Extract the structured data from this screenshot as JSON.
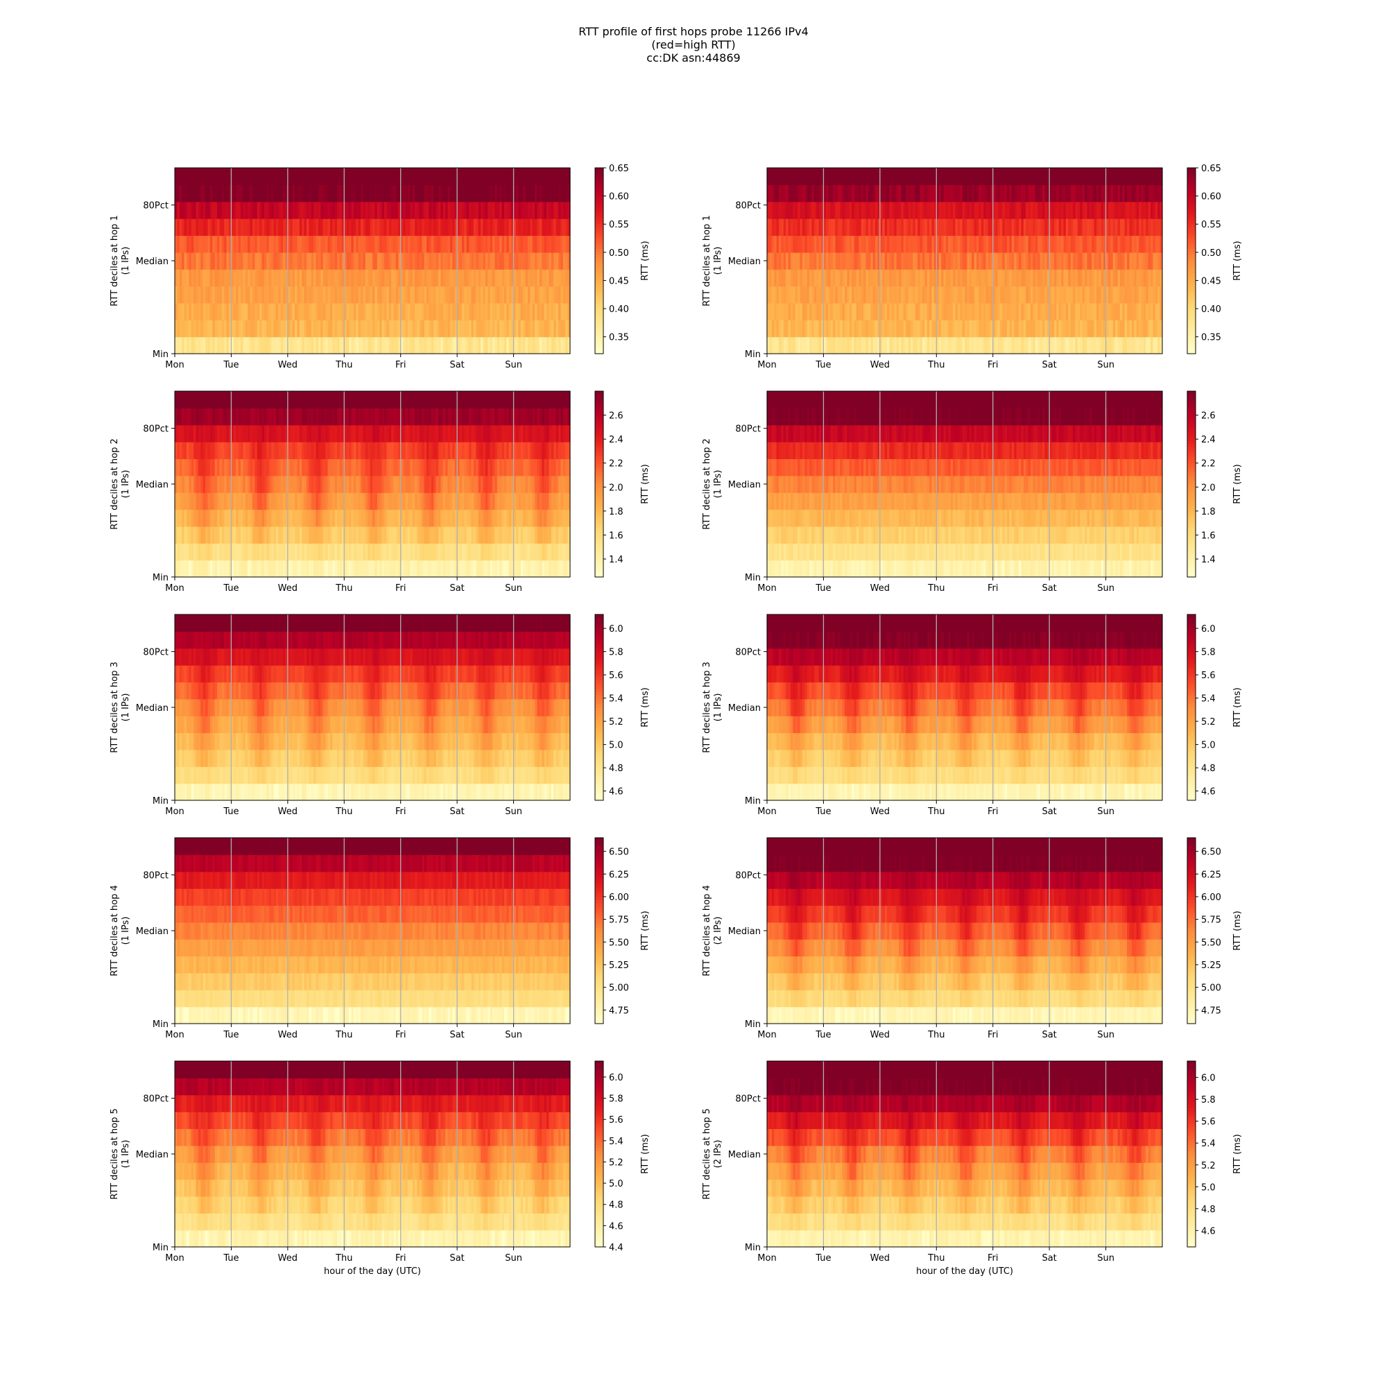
{
  "figure": {
    "title_lines": [
      "RTT profile of first hops probe 11266 IPv4",
      "(red=high RTT)",
      "cc:DK asn:44869"
    ]
  },
  "chart_data": [
    {
      "type": "heatmap",
      "hop": 1,
      "ylabel": [
        "RTT deciles at hop 1",
        "(1 IPs)"
      ],
      "xlabel": "",
      "x_ticks": [
        "Mon",
        "Tue",
        "Wed",
        "Thu",
        "Fri",
        "Sat",
        "Sun"
      ],
      "y_ticks": [
        "Min",
        "Median",
        "80Pct"
      ],
      "colorbar_label": "RTT (ms)",
      "colorbar_ticks": [
        0.35,
        0.4,
        0.45,
        0.5,
        0.55,
        0.6,
        0.65
      ],
      "colorbar_tick_labels": [
        "0.35",
        "0.40",
        "0.45",
        "0.50",
        "0.55",
        "0.60",
        "0.65"
      ],
      "colorbar_range": [
        0.32,
        0.65
      ],
      "deciles_approx": [
        0.38,
        0.44,
        0.45,
        0.46,
        0.47,
        0.5,
        0.52,
        0.56,
        0.6,
        0.65,
        0.68
      ],
      "variability": 0.1,
      "pattern": "flat"
    },
    {
      "type": "heatmap",
      "hop": 1,
      "ylabel": [
        "RTT deciles at hop 1",
        "(1 IPs)"
      ],
      "xlabel": "",
      "x_ticks": [
        "Mon",
        "Tue",
        "Wed",
        "Thu",
        "Fri",
        "Sat",
        "Sun"
      ],
      "y_ticks": [
        "Min",
        "Median",
        "80Pct"
      ],
      "colorbar_label": "RTT (ms)",
      "colorbar_ticks": [
        0.35,
        0.4,
        0.45,
        0.5,
        0.55,
        0.6,
        0.65
      ],
      "colorbar_tick_labels": [
        "0.35",
        "0.40",
        "0.45",
        "0.50",
        "0.55",
        "0.60",
        "0.65"
      ],
      "colorbar_range": [
        0.32,
        0.65
      ],
      "deciles_approx": [
        0.38,
        0.44,
        0.45,
        0.46,
        0.47,
        0.5,
        0.52,
        0.55,
        0.58,
        0.63,
        0.68
      ],
      "variability": 0.1,
      "pattern": "flat"
    },
    {
      "type": "heatmap",
      "hop": 2,
      "ylabel": [
        "RTT deciles at hop 2",
        "(1 IPs)"
      ],
      "xlabel": "",
      "x_ticks": [
        "Mon",
        "Tue",
        "Wed",
        "Thu",
        "Fri",
        "Sat",
        "Sun"
      ],
      "y_ticks": [
        "Min",
        "Median",
        "80Pct"
      ],
      "colorbar_label": "RTT (ms)",
      "colorbar_ticks": [
        1.4,
        1.6,
        1.8,
        2.0,
        2.2,
        2.4,
        2.6
      ],
      "colorbar_tick_labels": [
        "1.4",
        "1.6",
        "1.8",
        "2.0",
        "2.2",
        "2.4",
        "2.6"
      ],
      "colorbar_range": [
        1.25,
        2.8
      ],
      "deciles_approx": [
        1.4,
        1.55,
        1.68,
        1.8,
        1.92,
        2.02,
        2.12,
        2.25,
        2.45,
        2.7,
        2.9
      ],
      "variability": 0.07,
      "pattern": "diurnal"
    },
    {
      "type": "heatmap",
      "hop": 2,
      "ylabel": [
        "RTT deciles at hop 2",
        "(1 IPs)"
      ],
      "xlabel": "",
      "x_ticks": [
        "Mon",
        "Tue",
        "Wed",
        "Thu",
        "Fri",
        "Sat",
        "Sun"
      ],
      "y_ticks": [
        "Min",
        "Median",
        "80Pct"
      ],
      "colorbar_label": "RTT (ms)",
      "colorbar_ticks": [
        1.4,
        1.6,
        1.8,
        2.0,
        2.2,
        2.4,
        2.6
      ],
      "colorbar_tick_labels": [
        "1.4",
        "1.6",
        "1.8",
        "2.0",
        "2.2",
        "2.4",
        "2.6"
      ],
      "colorbar_range": [
        1.25,
        2.8
      ],
      "deciles_approx": [
        1.4,
        1.55,
        1.68,
        1.8,
        1.92,
        2.05,
        2.18,
        2.35,
        2.55,
        2.8,
        2.9
      ],
      "variability": 0.07,
      "pattern": "flat"
    },
    {
      "type": "heatmap",
      "hop": 3,
      "ylabel": [
        "RTT deciles at hop 3",
        "(1 IPs)"
      ],
      "xlabel": "",
      "x_ticks": [
        "Mon",
        "Tue",
        "Wed",
        "Thu",
        "Fri",
        "Sat",
        "Sun"
      ],
      "y_ticks": [
        "Min",
        "Median",
        "80Pct"
      ],
      "colorbar_label": "RTT (ms)",
      "colorbar_ticks": [
        4.6,
        4.8,
        5.0,
        5.2,
        5.4,
        5.6,
        5.8,
        6.0
      ],
      "colorbar_tick_labels": [
        "4.6",
        "4.8",
        "5.0",
        "5.2",
        "5.4",
        "5.6",
        "5.8",
        "6.0"
      ],
      "colorbar_range": [
        4.52,
        6.12
      ],
      "deciles_approx": [
        4.65,
        4.85,
        4.95,
        5.05,
        5.15,
        5.25,
        5.4,
        5.55,
        5.75,
        5.95,
        6.15
      ],
      "variability": 0.06,
      "pattern": "diurnal"
    },
    {
      "type": "heatmap",
      "hop": 3,
      "ylabel": [
        "RTT deciles at hop 3",
        "(1 IPs)"
      ],
      "xlabel": "",
      "x_ticks": [
        "Mon",
        "Tue",
        "Wed",
        "Thu",
        "Fri",
        "Sat",
        "Sun"
      ],
      "y_ticks": [
        "Min",
        "Median",
        "80Pct"
      ],
      "colorbar_label": "RTT (ms)",
      "colorbar_ticks": [
        4.6,
        4.8,
        5.0,
        5.2,
        5.4,
        5.6,
        5.8,
        6.0
      ],
      "colorbar_tick_labels": [
        "4.6",
        "4.8",
        "5.0",
        "5.2",
        "5.4",
        "5.6",
        "5.8",
        "6.0"
      ],
      "colorbar_range": [
        4.52,
        6.12
      ],
      "deciles_approx": [
        4.65,
        4.85,
        4.95,
        5.05,
        5.2,
        5.35,
        5.5,
        5.7,
        5.9,
        6.1,
        6.2
      ],
      "variability": 0.06,
      "pattern": "diurnal"
    },
    {
      "type": "heatmap",
      "hop": 4,
      "ylabel": [
        "RTT deciles at hop 4",
        "(1 IPs)"
      ],
      "xlabel": "",
      "x_ticks": [
        "Mon",
        "Tue",
        "Wed",
        "Thu",
        "Fri",
        "Sat",
        "Sun"
      ],
      "y_ticks": [
        "Min",
        "Median",
        "80Pct"
      ],
      "colorbar_label": "RTT (ms)",
      "colorbar_ticks": [
        4.75,
        5.0,
        5.25,
        5.5,
        5.75,
        6.0,
        6.25,
        6.5
      ],
      "colorbar_tick_labels": [
        "4.75",
        "5.00",
        "5.25",
        "5.50",
        "5.75",
        "6.00",
        "6.25",
        "6.50"
      ],
      "colorbar_range": [
        4.6,
        6.65
      ],
      "deciles_approx": [
        4.75,
        5.05,
        5.2,
        5.35,
        5.5,
        5.65,
        5.8,
        5.95,
        6.15,
        6.4,
        6.7
      ],
      "variability": 0.06,
      "pattern": "flat"
    },
    {
      "type": "heatmap",
      "hop": 4,
      "ylabel": [
        "RTT deciles at hop 4",
        "(2 IPs)"
      ],
      "xlabel": "",
      "x_ticks": [
        "Mon",
        "Tue",
        "Wed",
        "Thu",
        "Fri",
        "Sat",
        "Sun"
      ],
      "y_ticks": [
        "Min",
        "Median",
        "80Pct"
      ],
      "colorbar_label": "RTT (ms)",
      "colorbar_ticks": [
        4.75,
        5.0,
        5.25,
        5.5,
        5.75,
        6.0,
        6.25,
        6.5
      ],
      "colorbar_tick_labels": [
        "4.75",
        "5.00",
        "5.25",
        "5.50",
        "5.75",
        "6.00",
        "6.25",
        "6.50"
      ],
      "colorbar_range": [
        4.6,
        6.65
      ],
      "deciles_approx": [
        4.75,
        5.05,
        5.2,
        5.35,
        5.55,
        5.75,
        5.95,
        6.15,
        6.4,
        6.65,
        6.75
      ],
      "variability": 0.06,
      "pattern": "diurnal"
    },
    {
      "type": "heatmap",
      "hop": 5,
      "ylabel": [
        "RTT deciles at hop 5",
        "(1 IPs)"
      ],
      "xlabel": "hour of the day (UTC)",
      "x_ticks": [
        "Mon",
        "Tue",
        "Wed",
        "Thu",
        "Fri",
        "Sat",
        "Sun"
      ],
      "y_ticks": [
        "Min",
        "Median",
        "80Pct"
      ],
      "colorbar_label": "RTT (ms)",
      "colorbar_ticks": [
        4.4,
        4.6,
        4.8,
        5.0,
        5.2,
        5.4,
        5.6,
        5.8,
        6.0
      ],
      "colorbar_tick_labels": [
        "4.4",
        "4.6",
        "4.8",
        "5.0",
        "5.2",
        "5.4",
        "5.6",
        "5.8",
        "6.0"
      ],
      "colorbar_range": [
        4.4,
        6.15
      ],
      "deciles_approx": [
        4.55,
        4.72,
        4.82,
        4.92,
        5.02,
        5.15,
        5.32,
        5.5,
        5.7,
        5.95,
        6.2
      ],
      "variability": 0.07,
      "pattern": "diurnal"
    },
    {
      "type": "heatmap",
      "hop": 5,
      "ylabel": [
        "RTT deciles at hop 5",
        "(2 IPs)"
      ],
      "xlabel": "hour of the day (UTC)",
      "x_ticks": [
        "Mon",
        "Tue",
        "Wed",
        "Thu",
        "Fri",
        "Sat",
        "Sun"
      ],
      "y_ticks": [
        "Min",
        "Median",
        "80Pct"
      ],
      "colorbar_label": "RTT (ms)",
      "colorbar_ticks": [
        4.6,
        4.8,
        5.0,
        5.2,
        5.4,
        5.6,
        5.8,
        6.0
      ],
      "colorbar_tick_labels": [
        "4.6",
        "4.8",
        "5.0",
        "5.2",
        "5.4",
        "5.6",
        "5.8",
        "6.0"
      ],
      "colorbar_range": [
        4.45,
        6.15
      ],
      "deciles_approx": [
        4.6,
        4.78,
        4.9,
        5.02,
        5.15,
        5.3,
        5.5,
        5.72,
        5.95,
        6.15,
        6.25
      ],
      "variability": 0.07,
      "pattern": "diurnal"
    }
  ],
  "colormap": "YlOrRd",
  "colormap_stops": [
    "#ffffcc",
    "#ffeda0",
    "#fed976",
    "#feb24c",
    "#fd8d3c",
    "#fc4e2a",
    "#e31a1c",
    "#bd0026",
    "#800026"
  ],
  "grid_color": "#b0b0b0"
}
